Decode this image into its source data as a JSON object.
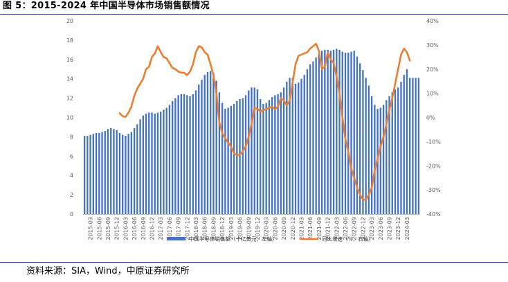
{
  "title": "图 5：2015-2024 年中国半导体市场销售额情况",
  "source": "资料来源：SIA，Wind，中原证券研究所",
  "chart_data": {
    "type": "bar+line",
    "title": "图 5：2015-2024 年中国半导体市场销售额情况",
    "y_left": {
      "min": 0,
      "max": 20,
      "step": 2,
      "ticks": [
        "0",
        "2",
        "4",
        "6",
        "8",
        "10",
        "12",
        "14",
        "16",
        "18",
        "20"
      ]
    },
    "y_right": {
      "min": -40,
      "max": 40,
      "step": 10,
      "ticks": [
        "-40%",
        "-30%",
        "-20%",
        "-10%",
        "0%",
        "10%",
        "20%",
        "30%",
        "40%"
      ]
    },
    "x_tick_labels": [
      "2015-03",
      "2015-06",
      "2015-09",
      "2015-12",
      "2016-03",
      "2016-06",
      "2016-09",
      "2016-12",
      "2017-03",
      "2017-06",
      "2017-09",
      "2017-12",
      "2018-03",
      "2018-06",
      "2018-09",
      "2018-12",
      "2019-03",
      "2019-06",
      "2019-09",
      "2019-12",
      "2020-03",
      "2020-06",
      "2020-09",
      "2020-12",
      "2021-03",
      "2021-06",
      "2021-09",
      "2021-12",
      "2022-03",
      "2022-06",
      "2022-09",
      "2022-12",
      "2023-03",
      "2023-06",
      "2023-09",
      "2023-12",
      "2024-03"
    ],
    "start_month": "2015-01",
    "series": [
      {
        "name": "中国半导体销售额（十亿美元，左轴）",
        "axis": "left",
        "type": "bar",
        "color": "#4472c4",
        "values": [
          8.1,
          8.1,
          8.2,
          8.3,
          8.4,
          8.4,
          8.5,
          8.6,
          8.8,
          8.9,
          8.8,
          8.7,
          8.4,
          8.2,
          8.1,
          8.3,
          8.5,
          8.9,
          9.3,
          9.8,
          10.2,
          10.4,
          10.5,
          10.5,
          10.4,
          10.5,
          10.6,
          10.8,
          11.0,
          11.3,
          11.7,
          12.0,
          12.3,
          12.4,
          12.4,
          12.3,
          12.2,
          12.4,
          12.8,
          13.4,
          13.9,
          14.4,
          14.7,
          14.8,
          14.6,
          13.8,
          12.6,
          11.5,
          10.9,
          11.0,
          11.2,
          11.4,
          11.7,
          11.9,
          12.0,
          12.3,
          12.8,
          13.1,
          13.1,
          12.9,
          11.9,
          11.4,
          11.5,
          11.8,
          12.1,
          12.3,
          12.4,
          12.6,
          13.1,
          13.7,
          14.1,
          14.1,
          13.5,
          13.6,
          14.0,
          14.4,
          15.0,
          15.5,
          15.8,
          16.2,
          16.6,
          16.9,
          17.0,
          17.0,
          16.9,
          17.0,
          17.1,
          17.0,
          16.8,
          16.7,
          16.7,
          16.8,
          16.9,
          16.3,
          15.6,
          14.9,
          14.1,
          13.3,
          12.2,
          11.3,
          10.9,
          11.0,
          11.3,
          11.8,
          12.2,
          12.6,
          12.9,
          13.1,
          13.7,
          14.4,
          15.0,
          14.1,
          14.1,
          14.1,
          14.1
        ]
      },
      {
        "name": "同比增速（%，右轴）",
        "axis": "right",
        "type": "line",
        "color": "#ed7d31",
        "start_month": "2016-01",
        "values": [
          1.8,
          0.5,
          0.2,
          2.0,
          4.5,
          9.0,
          12.0,
          14.0,
          16.0,
          20.0,
          21.0,
          25.0,
          26.5,
          29.5,
          27.0,
          25.0,
          24.5,
          22.5,
          20.5,
          20.0,
          19.0,
          18.5,
          18.5,
          17.5,
          19.0,
          22.0,
          27.0,
          29.5,
          29.0,
          27.0,
          26.0,
          22.0,
          17.5,
          10.0,
          -2.0,
          -6.5,
          -8.5,
          -10.5,
          -12.0,
          -15.0,
          -15.5,
          -15.5,
          -14.0,
          -12.0,
          -8.0,
          -2.5,
          4.0,
          3.5,
          2.5,
          3.0,
          3.5,
          4.0,
          4.5,
          3.5,
          4.5,
          8.0,
          7.0,
          5.0,
          7.0,
          14.5,
          22.0,
          25.5,
          26.0,
          26.5,
          27.0,
          28.5,
          29.5,
          30.5,
          27.5,
          20.0,
          21.0,
          27.0,
          24.0,
          22.5,
          17.0,
          10.0,
          0.0,
          -9.0,
          -14.0,
          -21.0,
          -25.0,
          -29.0,
          -32.0,
          -34.0,
          -34.0,
          -32.0,
          -29.0,
          -22.0,
          -17.0,
          -12.0,
          -8.0,
          -3.0,
          3.0,
          8.0,
          14.0,
          20.0,
          26.0,
          28.5,
          27.0,
          23.5
        ]
      }
    ],
    "legend": [
      {
        "label": "中国半导体销售额（十亿美元，左轴）",
        "kind": "bar",
        "color": "#4472c4"
      },
      {
        "label": "同比增速（%，右轴）",
        "kind": "line",
        "color": "#ed7d31"
      }
    ],
    "legend_position": "bottom",
    "grid": false
  }
}
